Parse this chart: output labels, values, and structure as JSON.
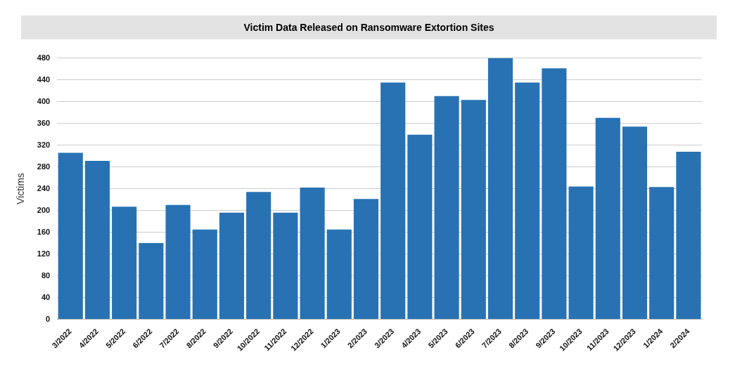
{
  "chart_data": {
    "type": "bar",
    "title": "Victim Data Released on Ransomware Extortion Sites",
    "ylabel": "Victims",
    "categories": [
      "3/2022",
      "4/2022",
      "5/2022",
      "6/2022",
      "7/2022",
      "8/2022",
      "9/2022",
      "10/2022",
      "11/2022",
      "12/2022",
      "1/2023",
      "2/2023",
      "3/2023",
      "4/2023",
      "5/2023",
      "6/2023",
      "7/2023",
      "8/2023",
      "9/2023",
      "10/2023",
      "11/2023",
      "12/2023",
      "1/2024",
      "2/2024"
    ],
    "values": [
      306,
      291,
      207,
      140,
      210,
      165,
      196,
      234,
      196,
      242,
      165,
      221,
      435,
      339,
      410,
      403,
      480,
      435,
      461,
      244,
      370,
      354,
      243,
      308
    ],
    "color": "#2872b4",
    "ylim": [
      0,
      480
    ],
    "yticks": [
      0,
      40,
      80,
      120,
      160,
      200,
      240,
      280,
      320,
      360,
      400,
      440,
      480
    ],
    "grid": "y"
  }
}
